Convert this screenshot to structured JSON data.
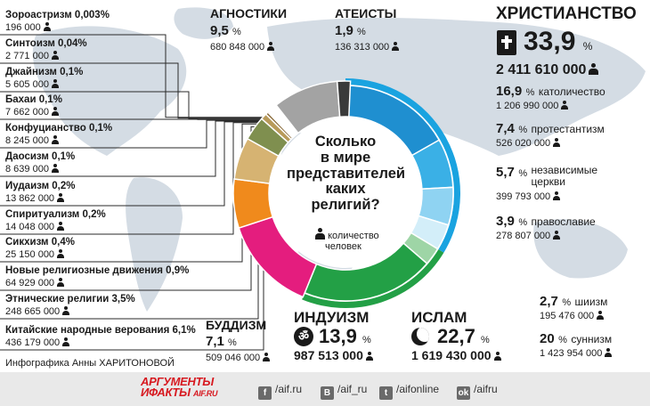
{
  "chart_data": {
    "type": "pie",
    "title": "Сколько в мире представителей каких религий?",
    "legend_note": "количество человек",
    "slices": [
      {
        "name": "ХРИСТИАНСТВО",
        "percent": 33.9,
        "value": "2 411 610 000",
        "color": "#1aa3e0",
        "sub": [
          {
            "name": "католичество",
            "percent": 16.9,
            "value": "1 206 990 000",
            "color": "#1f8fd0"
          },
          {
            "name": "протестантизм",
            "percent": 7.4,
            "value": "526 020 000",
            "color": "#3ab0e6"
          },
          {
            "name": "независимые церкви",
            "percent": 5.7,
            "value": "399 793 000",
            "color": "#8fd3f2"
          },
          {
            "name": "православие",
            "percent": 3.9,
            "value": "278 807 000",
            "color": "#d3eef9"
          }
        ]
      },
      {
        "name": "ИСЛАМ",
        "percent": 22.7,
        "value": "1 619 430 000",
        "color": "#23a046",
        "sub": [
          {
            "name": "шиизм",
            "percent": 2.7,
            "value": "195 476 000",
            "color": "#9ed5a6"
          },
          {
            "name": "суннизм",
            "percent": 20,
            "value": "1 423 954 000",
            "color": "#23a046"
          }
        ]
      },
      {
        "name": "ИНДУИЗМ",
        "percent": 13.9,
        "value": "987 513 000",
        "color": "#e41d7e"
      },
      {
        "name": "БУДДИЗМ",
        "percent": 7.1,
        "value": "509 046 000",
        "color": "#f08a1c"
      },
      {
        "name": "Китайские народные верования",
        "percent": 6.1,
        "value": "436 179 000",
        "color": "#d6b372"
      },
      {
        "name": "Этнические религии",
        "percent": 3.5,
        "value": "248 665 000",
        "color": "#7f8f4f"
      },
      {
        "name": "Новые религиозные движения",
        "percent": 0.9,
        "value": "64 929 000",
        "color": "#b89a5a"
      },
      {
        "name": "Сикхизм",
        "percent": 0.4,
        "value": "25 150 000",
        "color": "#8a6b3a"
      },
      {
        "name": "Спиритуализм",
        "percent": 0.2,
        "value": "14 048 000",
        "color": "#e7a0a0"
      },
      {
        "name": "Иудаизм",
        "percent": 0.2,
        "value": "13 862 000",
        "color": "#ffffff"
      },
      {
        "name": "Даосизм",
        "percent": 0.1,
        "value": "8 639 000",
        "color": "#c44a4a"
      },
      {
        "name": "Конфуцианство",
        "percent": 0.1,
        "value": "8 245 000",
        "color": "#d08080"
      },
      {
        "name": "Бахаи",
        "percent": 0.1,
        "value": "7 662 000",
        "color": "#e9b0b0"
      },
      {
        "name": "Джайнизм",
        "percent": 0.1,
        "value": "5 605 000",
        "color": "#a84040"
      },
      {
        "name": "Синтоизм",
        "percent": 0.04,
        "value": "2 771 000",
        "color": "#bb5555"
      },
      {
        "name": "Зороастризм",
        "percent": 0.003,
        "value": "196 000",
        "color": "#993333"
      },
      {
        "name": "АГНОСТИКИ",
        "percent": 9.5,
        "value": "680 848 000",
        "color": "#a3a3a3"
      },
      {
        "name": "АТЕИСТЫ",
        "percent": 1.9,
        "value": "136 313 000",
        "color": "#3a3a3a"
      }
    ]
  },
  "left_list": [
    {
      "name": "Зороастризм",
      "pct": "0,003%",
      "value": "196 000"
    },
    {
      "name": "Синтоизм",
      "pct": "0,04%",
      "value": "2 771 000"
    },
    {
      "name": "Джайнизм",
      "pct": "0,1%",
      "value": "5 605 000"
    },
    {
      "name": "Бахаи",
      "pct": "0,1%",
      "value": "7 662 000"
    },
    {
      "name": "Конфуцианство",
      "pct": "0,1%",
      "value": "8 245 000"
    },
    {
      "name": "Даосизм",
      "pct": "0,1%",
      "value": "8 639 000"
    },
    {
      "name": "Иудаизм",
      "pct": "0,2%",
      "value": "13 862 000"
    },
    {
      "name": "Спиритуализм",
      "pct": "0,2%",
      "value": "14 048 000"
    },
    {
      "name": "Сикхизм",
      "pct": "0,4%",
      "value": "25 150 000"
    },
    {
      "name": "Новые религиозные движения",
      "pct": "0,9%",
      "value": "64 929 000"
    },
    {
      "name": "Этнические религии",
      "pct": "3,5%",
      "value": "248 665 000"
    },
    {
      "name": "Китайские народные верования",
      "pct": "6,1%",
      "value": "436 179 000"
    }
  ],
  "agnostics": {
    "title": "АГНОСТИКИ",
    "pct": "9,5",
    "unit": "%",
    "value": "680 848 000"
  },
  "atheists": {
    "title": "АТЕИСТЫ",
    "pct": "1,9",
    "unit": "%",
    "value": "136 313 000"
  },
  "christianity": {
    "title": "ХРИСТИАНСТВО",
    "pct": "33,9",
    "unit": "%",
    "value": "2 411 610 000",
    "sub": [
      {
        "pct": "16,9",
        "unit": "%",
        "name": "католичество",
        "value": "1 206 990 000"
      },
      {
        "pct": "7,4",
        "unit": "%",
        "name": "протестантизм",
        "value": "526 020 000"
      },
      {
        "pct": "5,7",
        "unit": "%",
        "name": "независимые церкви",
        "value": "399 793 000"
      },
      {
        "pct": "3,9",
        "unit": "%",
        "name": "православие",
        "value": "278 807 000"
      }
    ]
  },
  "islam": {
    "title": "ИСЛАМ",
    "pct": "22,7",
    "unit": "%",
    "value": "1 619 430 000",
    "sub": [
      {
        "pct": "2,7",
        "unit": "%",
        "name": "шиизм",
        "value": "195 476 000"
      },
      {
        "pct": "20",
        "unit": "%",
        "name": "суннизм",
        "value": "1 423 954 000"
      }
    ]
  },
  "hinduism": {
    "title": "ИНДУИЗМ",
    "pct": "13,9",
    "unit": "%",
    "value": "987 513 000"
  },
  "buddhism": {
    "title": "БУДДИЗМ",
    "pct": "7,1",
    "unit": "%",
    "value": "509 046 000"
  },
  "center": {
    "line1": "Сколько",
    "line2": "в мире",
    "line3": "представителей",
    "line4": "каких",
    "line5": "религий?",
    "note1": "количество",
    "note2": "человек"
  },
  "credit": "Инфографика Анны ХАРИТОНОВОЙ",
  "footer": {
    "logo_line1": "АРГУМЕНТЫ",
    "logo_line2": "ИФАКТЫ",
    "logo_site": "AIF.RU",
    "links": [
      {
        "icon": "facebook-icon",
        "glyph": "f",
        "text": "/aif.ru"
      },
      {
        "icon": "vk-icon",
        "glyph": "B",
        "text": "/aif_ru"
      },
      {
        "icon": "twitter-icon",
        "glyph": "t",
        "text": "/aifonline"
      },
      {
        "icon": "odnoklassniki-icon",
        "glyph": "ok",
        "text": "/aifru"
      }
    ]
  },
  "colors": {
    "christianity": "#1aa3e0",
    "islam": "#23a046",
    "hinduism": "#e41d7e",
    "buddhism": "#f08a1c",
    "agnostics": "#a3a3a3",
    "atheists": "#3a3a3a",
    "map": "#d2dae2"
  }
}
